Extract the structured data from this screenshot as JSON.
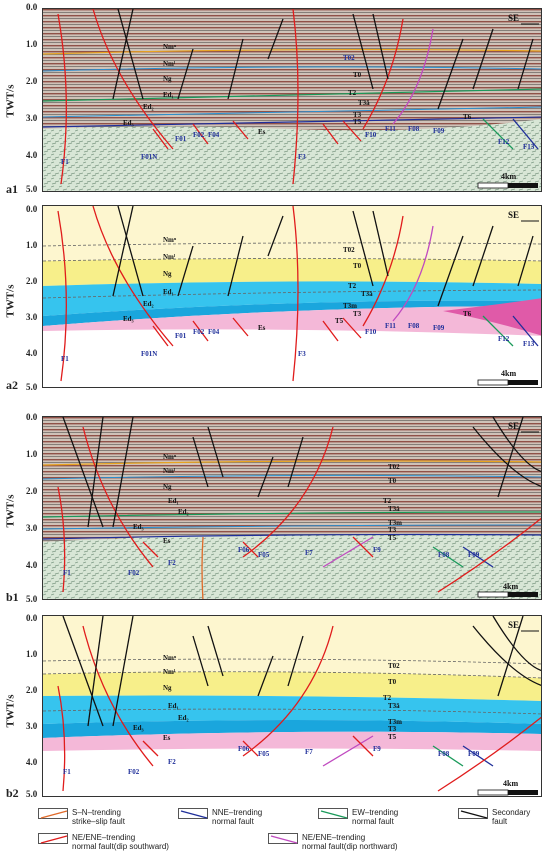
{
  "yaxis": {
    "label": "TWT/s",
    "ticks": [
      "0.0",
      "1.0",
      "2.0",
      "3.0",
      "4.0",
      "5.0"
    ]
  },
  "panels": [
    {
      "id": "a1",
      "type": "seismic",
      "direction": "SE",
      "scale": "4km",
      "layers": [
        "Nmᵘ",
        "Nmˡ",
        "Ng",
        "Ed₁",
        "Ed₂",
        "Ed₃",
        "Es"
      ],
      "horizons": [
        "T02",
        "T0",
        "T2",
        "T3ā",
        "T3",
        "T5",
        "T6"
      ],
      "faults": [
        "F1",
        "F01N",
        "F01",
        "F02",
        "F04",
        "F3",
        "F10",
        "F11",
        "F08",
        "F09",
        "F12",
        "F13"
      ]
    },
    {
      "id": "a2",
      "type": "interpretation",
      "direction": "SE",
      "scale": "4km",
      "layers": [
        "Nmᵘ",
        "Nmˡ",
        "Ng",
        "Ed₁",
        "Ed₂",
        "Ed₃",
        "Es"
      ],
      "horizons": [
        "T02",
        "T0",
        "T2",
        "T3ā",
        "T3m",
        "T3",
        "T5",
        "T6"
      ],
      "faults": [
        "F1",
        "F01N",
        "F01",
        "F02",
        "F04",
        "F3",
        "F10",
        "F11",
        "F08",
        "F09",
        "F12",
        "F13"
      ]
    },
    {
      "id": "b1",
      "type": "seismic",
      "direction": "SE",
      "scale": "4km",
      "layers": [
        "Nmᵘ",
        "Nmˡ",
        "Ng",
        "Ed₁",
        "Ed₂",
        "Ed₃",
        "Es"
      ],
      "horizons": [
        "T02",
        "T0",
        "T2",
        "T3ā",
        "T3m",
        "T3",
        "T5"
      ],
      "faults": [
        "F1",
        "F02",
        "F2",
        "F06",
        "F05",
        "F7",
        "F9",
        "F08",
        "F09"
      ]
    },
    {
      "id": "b2",
      "type": "interpretation",
      "direction": "SE",
      "scale": "4km",
      "layers": [
        "Nmᵘ",
        "Nmˡ",
        "Ng",
        "Ed₁",
        "Ed₂",
        "Ed₃",
        "Es"
      ],
      "horizons": [
        "T02",
        "T0",
        "T2",
        "T3ā",
        "T3m",
        "T3",
        "T5"
      ],
      "faults": [
        "F1",
        "F02",
        "F2",
        "F06",
        "F05",
        "F7",
        "F9",
        "F08",
        "F09"
      ]
    }
  ],
  "legend": [
    {
      "label1": "S–N–trending",
      "label2": "strike–slip fault",
      "color": "#e06a2a"
    },
    {
      "label1": "NNE–trending",
      "label2": "normal fault",
      "color": "#1f2f9a"
    },
    {
      "label1": "EW–trending",
      "label2": "normal  fault",
      "color": "#1a9a5a"
    },
    {
      "label1": "Secondary",
      "label2": "fault",
      "color": "#111111"
    },
    {
      "label1": "NE/ENE–trending",
      "label2": "normal fault(dip southward)",
      "color": "#e01c1c"
    },
    {
      "label1": "NE/ENE–trending",
      "label2": "normal fault(dip northward)",
      "color": "#c04ac0"
    }
  ],
  "colors": {
    "nm_upper": "#fdf6cf",
    "ng": "#f7ef8a",
    "ed": "#36c4ee",
    "ed_dark": "#1aa6dd",
    "es": "#f4b8d8",
    "es_dark": "#e05aa8",
    "fault_red": "#e01c1c",
    "fault_black": "#111111",
    "fault_blue": "#1f2f9a",
    "fault_green": "#1a9a5a",
    "fault_magenta": "#c04ac0"
  }
}
